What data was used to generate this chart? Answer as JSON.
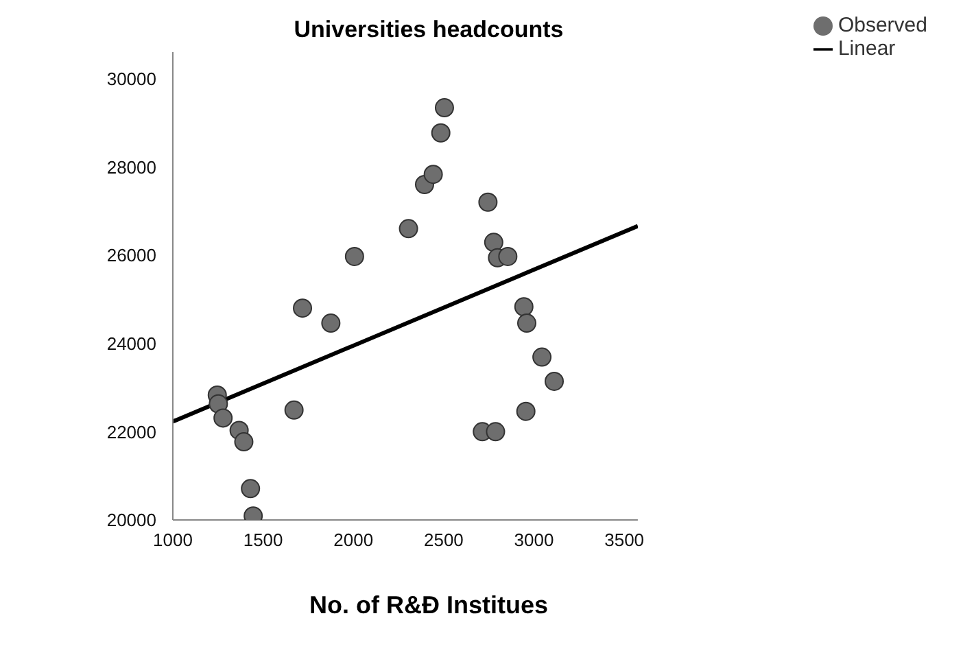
{
  "chart_data": {
    "type": "scatter",
    "title": "Universities headcounts",
    "xlabel": "No. of R&Đ Institues",
    "xlim": [
      1000,
      3575
    ],
    "xticks": [
      1000,
      1500,
      2000,
      2500,
      3000,
      3500
    ],
    "ylim": [
      20000,
      30600
    ],
    "yticks": [
      20000,
      22000,
      24000,
      26000,
      28000,
      30000
    ],
    "grid": false,
    "legend": "top right",
    "series": [
      {
        "name": "Observed",
        "marker": "circle",
        "color": "#6e6e6e",
        "x": [
          1246,
          1252,
          1278,
          1367,
          1393,
          1430,
          1445,
          1671,
          1718,
          1875,
          2006,
          2305,
          2394,
          2442,
          2484,
          2504,
          2745,
          2777,
          2798,
          2855,
          2714,
          2787,
          2944,
          2960,
          2955,
          3044,
          3112
        ],
        "values": [
          22830,
          22630,
          22310,
          22030,
          21770,
          20710,
          20090,
          22490,
          24800,
          24460,
          25970,
          26600,
          27600,
          27830,
          28770,
          29340,
          27200,
          26290,
          25940,
          25970,
          22000,
          22000,
          24830,
          24460,
          22460,
          23690,
          23140
        ]
      },
      {
        "name": "Linear",
        "type": "line",
        "marker": "none",
        "color": "#000000",
        "x": [
          1000,
          3575
        ],
        "values": [
          22230,
          26660
        ]
      }
    ]
  }
}
